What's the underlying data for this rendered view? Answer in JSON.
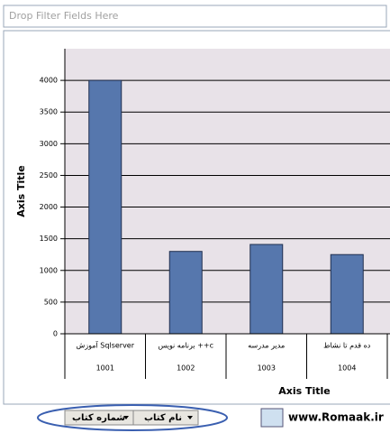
{
  "filter_area": "Drop Filter Fields Here",
  "chart_data": {
    "type": "bar",
    "y_axis_title": "Axis Title",
    "x_axis_title": "Axis Title",
    "categories": [
      "آموزش Sqlserver",
      "برنامه نویس ++c",
      "مدیر مدرسه",
      "ده قدم تا نشاط"
    ],
    "category_codes": [
      "1001",
      "1002",
      "1003",
      "1004"
    ],
    "values": [
      4000,
      1300,
      1410,
      1250
    ],
    "color": "#5677ad",
    "ylim": [
      0,
      4500
    ],
    "yticks": [
      0,
      500,
      1000,
      1500,
      2000,
      2500,
      3000,
      3500,
      4000
    ],
    "grid": true
  },
  "field_buttons": [
    "شماره کتاب",
    "نام کتاب"
  ],
  "site": "www.Romaak.ir"
}
